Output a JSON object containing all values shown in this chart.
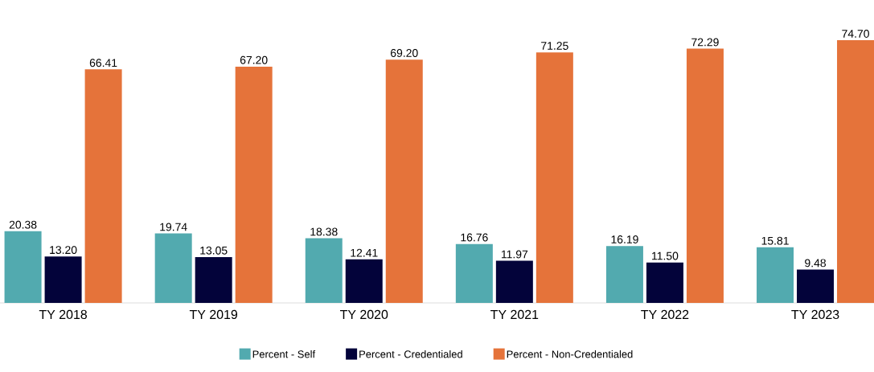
{
  "chart_data": {
    "type": "bar",
    "categories": [
      "TY 2018",
      "TY 2019",
      "TY 2020",
      "TY 2021",
      "TY 2022",
      "TY 2023"
    ],
    "series": [
      {
        "name": "Percent - Self",
        "color": "#52aaaf",
        "values": [
          20.38,
          19.74,
          18.38,
          16.76,
          16.19,
          15.81
        ],
        "value_labels": [
          "20.38",
          "19.74",
          "18.38",
          "16.76",
          "16.19",
          "15.81"
        ]
      },
      {
        "name": "Percent - Credentialed",
        "color": "#03033a",
        "values": [
          13.2,
          13.05,
          12.41,
          11.97,
          11.5,
          9.48
        ],
        "value_labels": [
          "13.20",
          "13.05",
          "12.41",
          "11.97",
          "11.50",
          "9.48"
        ]
      },
      {
        "name": "Percent - Non-Credentialed",
        "color": "#e5733a",
        "values": [
          66.41,
          67.2,
          69.2,
          71.25,
          72.29,
          74.7
        ],
        "value_labels": [
          "66.41",
          "67.20",
          "69.20",
          "71.25",
          "72.29",
          "74.70"
        ]
      }
    ],
    "legend": "bottom"
  }
}
